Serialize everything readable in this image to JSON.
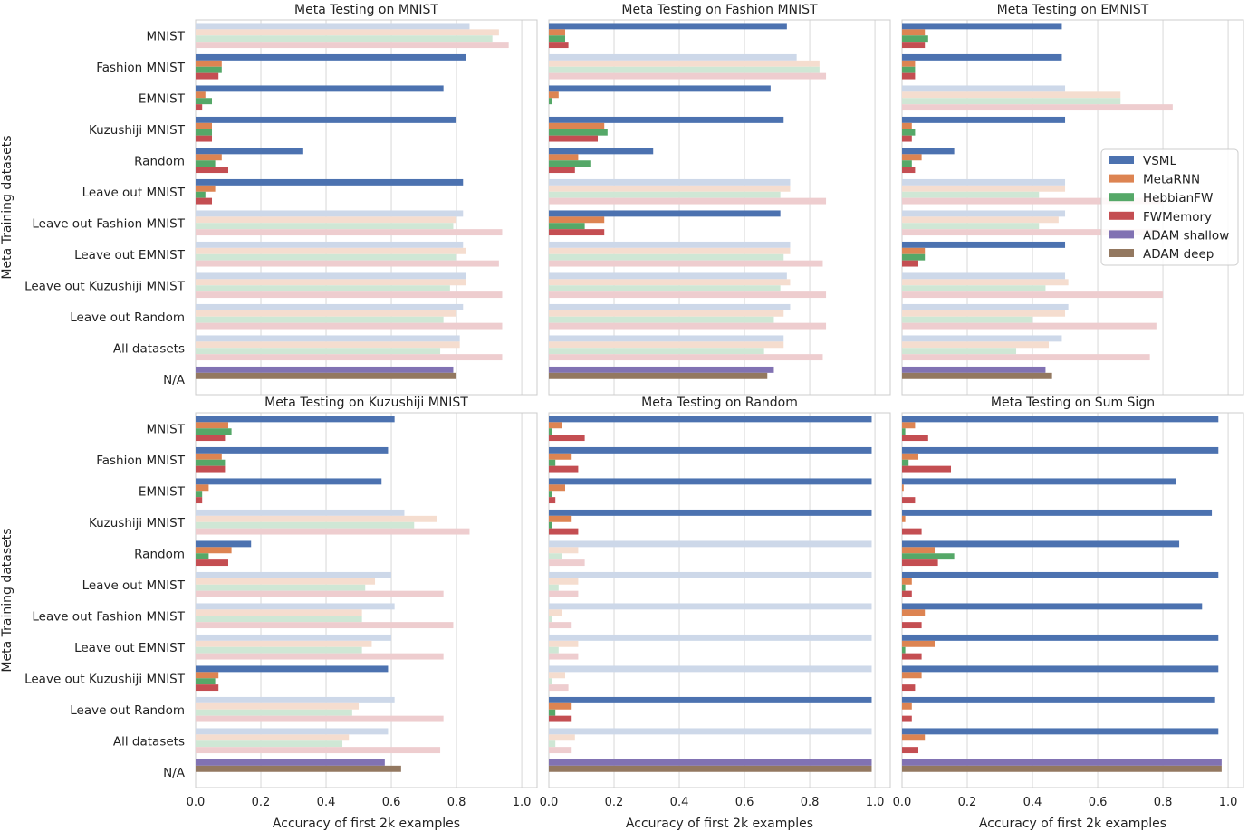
{
  "chart_data": [
    {
      "type": "bar",
      "title": "Meta Testing on MNIST",
      "xlabel": "Accuracy of first 2k examples",
      "ylabel": "Meta Training datasets",
      "xlim": [
        0,
        1.047
      ],
      "faded_rows": [
        "MNIST",
        "Leave out Fashion MNIST",
        "Leave out EMNIST",
        "Leave out Kuzushiji MNIST",
        "Leave out Random",
        "All datasets"
      ],
      "series": [
        {
          "name": "VSML",
          "values": [
            0.84,
            0.83,
            0.76,
            0.8,
            0.33,
            0.82,
            0.82,
            0.82,
            0.83,
            0.82,
            0.81,
            null
          ]
        },
        {
          "name": "MetaRNN",
          "values": [
            0.93,
            0.08,
            0.03,
            0.05,
            0.08,
            0.06,
            0.8,
            0.83,
            0.83,
            0.8,
            0.81,
            null
          ]
        },
        {
          "name": "HebbianFW",
          "values": [
            0.91,
            0.08,
            0.05,
            0.05,
            0.06,
            0.03,
            0.79,
            0.8,
            0.78,
            0.76,
            0.75,
            null
          ]
        },
        {
          "name": "FWMemory",
          "values": [
            0.96,
            0.07,
            0.02,
            0.05,
            0.1,
            0.05,
            0.94,
            0.93,
            0.94,
            0.94,
            0.94,
            null
          ]
        },
        {
          "name": "ADAM shallow",
          "values": [
            null,
            null,
            null,
            null,
            null,
            null,
            null,
            null,
            null,
            null,
            null,
            0.79
          ]
        },
        {
          "name": "ADAM deep",
          "values": [
            null,
            null,
            null,
            null,
            null,
            null,
            null,
            null,
            null,
            null,
            null,
            0.8
          ]
        }
      ]
    },
    {
      "type": "bar",
      "title": "Meta Testing on Fashion MNIST",
      "xlabel": "Accuracy of first 2k examples",
      "ylabel": "",
      "xlim": [
        0,
        1.047
      ],
      "faded_rows": [
        "Fashion MNIST",
        "Leave out MNIST",
        "Leave out EMNIST",
        "Leave out Kuzushiji MNIST",
        "Leave out Random",
        "All datasets"
      ],
      "series": [
        {
          "name": "VSML",
          "values": [
            0.73,
            0.76,
            0.68,
            0.72,
            0.32,
            0.74,
            0.71,
            0.74,
            0.73,
            0.74,
            0.72,
            null
          ]
        },
        {
          "name": "MetaRNN",
          "values": [
            0.05,
            0.83,
            0.03,
            0.17,
            0.09,
            0.74,
            0.17,
            0.74,
            0.74,
            0.72,
            0.72,
            null
          ]
        },
        {
          "name": "HebbianFW",
          "values": [
            0.05,
            0.83,
            0.01,
            0.18,
            0.13,
            0.71,
            0.11,
            0.72,
            0.71,
            0.69,
            0.66,
            null
          ]
        },
        {
          "name": "FWMemory",
          "values": [
            0.06,
            0.85,
            0.0,
            0.15,
            0.08,
            0.85,
            0.17,
            0.84,
            0.85,
            0.85,
            0.84,
            null
          ]
        },
        {
          "name": "ADAM shallow",
          "values": [
            null,
            null,
            null,
            null,
            null,
            null,
            null,
            null,
            null,
            null,
            null,
            0.69
          ]
        },
        {
          "name": "ADAM deep",
          "values": [
            null,
            null,
            null,
            null,
            null,
            null,
            null,
            null,
            null,
            null,
            null,
            0.67
          ]
        }
      ]
    },
    {
      "type": "bar",
      "title": "Meta Testing on EMNIST",
      "xlabel": "Accuracy of first 2k examples",
      "ylabel": "",
      "xlim": [
        0,
        1.047
      ],
      "faded_rows": [
        "EMNIST",
        "Leave out MNIST",
        "Leave out Fashion MNIST",
        "Leave out Kuzushiji MNIST",
        "Leave out Random",
        "All datasets"
      ],
      "series": [
        {
          "name": "VSML",
          "values": [
            0.49,
            0.49,
            0.5,
            0.5,
            0.16,
            0.5,
            0.5,
            0.5,
            0.5,
            0.51,
            0.49,
            null
          ]
        },
        {
          "name": "MetaRNN",
          "values": [
            0.07,
            0.04,
            0.67,
            0.03,
            0.06,
            0.5,
            0.48,
            0.07,
            0.51,
            0.5,
            0.45,
            null
          ]
        },
        {
          "name": "HebbianFW",
          "values": [
            0.08,
            0.04,
            0.67,
            0.04,
            0.03,
            0.42,
            0.42,
            0.07,
            0.44,
            0.4,
            0.35,
            null
          ]
        },
        {
          "name": "FWMemory",
          "values": [
            0.07,
            0.04,
            0.83,
            0.03,
            0.04,
            0.8,
            0.79,
            0.05,
            0.8,
            0.78,
            0.76,
            null
          ]
        },
        {
          "name": "ADAM shallow",
          "values": [
            null,
            null,
            null,
            null,
            null,
            null,
            null,
            null,
            null,
            null,
            null,
            0.44
          ]
        },
        {
          "name": "ADAM deep",
          "values": [
            null,
            null,
            null,
            null,
            null,
            null,
            null,
            null,
            null,
            null,
            null,
            0.46
          ]
        }
      ]
    },
    {
      "type": "bar",
      "title": "Meta Testing on Kuzushiji MNIST",
      "xlabel": "Accuracy of first 2k examples",
      "ylabel": "Meta Training datasets",
      "xlim": [
        0,
        1.047
      ],
      "faded_rows": [
        "Kuzushiji MNIST",
        "Leave out MNIST",
        "Leave out Fashion MNIST",
        "Leave out EMNIST",
        "Leave out Random",
        "All datasets"
      ],
      "series": [
        {
          "name": "VSML",
          "values": [
            0.61,
            0.59,
            0.57,
            0.64,
            0.17,
            0.6,
            0.61,
            0.6,
            0.59,
            0.61,
            0.59,
            null
          ]
        },
        {
          "name": "MetaRNN",
          "values": [
            0.1,
            0.08,
            0.04,
            0.74,
            0.11,
            0.55,
            0.51,
            0.54,
            0.07,
            0.5,
            0.47,
            null
          ]
        },
        {
          "name": "HebbianFW",
          "values": [
            0.11,
            0.09,
            0.02,
            0.67,
            0.04,
            0.52,
            0.51,
            0.51,
            0.06,
            0.48,
            0.45,
            null
          ]
        },
        {
          "name": "FWMemory",
          "values": [
            0.09,
            0.09,
            0.02,
            0.84,
            0.1,
            0.76,
            0.79,
            0.76,
            0.07,
            0.76,
            0.75,
            null
          ]
        },
        {
          "name": "ADAM shallow",
          "values": [
            null,
            null,
            null,
            null,
            null,
            null,
            null,
            null,
            null,
            null,
            null,
            0.58
          ]
        },
        {
          "name": "ADAM deep",
          "values": [
            null,
            null,
            null,
            null,
            null,
            null,
            null,
            null,
            null,
            null,
            null,
            0.63
          ]
        }
      ]
    },
    {
      "type": "bar",
      "title": "Meta Testing on Random",
      "xlabel": "Accuracy of first 2k examples",
      "ylabel": "",
      "xlim": [
        0,
        1.047
      ],
      "faded_rows": [
        "Random",
        "Leave out MNIST",
        "Leave out Fashion MNIST",
        "Leave out EMNIST",
        "Leave out Kuzushiji MNIST",
        "All datasets"
      ],
      "series": [
        {
          "name": "VSML",
          "values": [
            0.99,
            0.99,
            0.99,
            0.99,
            0.99,
            0.99,
            0.99,
            0.99,
            0.99,
            0.99,
            0.99,
            null
          ]
        },
        {
          "name": "MetaRNN",
          "values": [
            0.04,
            0.07,
            0.05,
            0.07,
            0.09,
            0.09,
            0.04,
            0.09,
            0.05,
            0.07,
            0.08,
            null
          ]
        },
        {
          "name": "HebbianFW",
          "values": [
            0.01,
            0.02,
            0.01,
            0.01,
            0.04,
            0.03,
            0.01,
            0.03,
            0.01,
            0.02,
            0.02,
            null
          ]
        },
        {
          "name": "FWMemory",
          "values": [
            0.11,
            0.09,
            0.02,
            0.09,
            0.11,
            0.09,
            0.07,
            0.09,
            0.06,
            0.07,
            0.07,
            null
          ]
        },
        {
          "name": "ADAM shallow",
          "values": [
            null,
            null,
            null,
            null,
            null,
            null,
            null,
            null,
            null,
            null,
            null,
            0.99
          ]
        },
        {
          "name": "ADAM deep",
          "values": [
            null,
            null,
            null,
            null,
            null,
            null,
            null,
            null,
            null,
            null,
            null,
            0.99
          ]
        }
      ]
    },
    {
      "type": "bar",
      "title": "Meta Testing on Sum Sign",
      "xlabel": "Accuracy of first 2k examples",
      "ylabel": "",
      "xlim": [
        0,
        1.047
      ],
      "faded_rows": [],
      "series": [
        {
          "name": "VSML",
          "values": [
            0.97,
            0.97,
            0.84,
            0.95,
            0.85,
            0.97,
            0.92,
            0.97,
            0.97,
            0.96,
            0.97,
            null
          ]
        },
        {
          "name": "MetaRNN",
          "values": [
            0.04,
            0.05,
            0.005,
            0.01,
            0.1,
            0.03,
            0.07,
            0.1,
            0.06,
            0.03,
            0.07,
            null
          ]
        },
        {
          "name": "HebbianFW",
          "values": [
            0.01,
            0.02,
            0.0,
            0.0,
            0.16,
            0.01,
            0.0,
            0.01,
            0.0,
            0.0,
            0.0,
            null
          ]
        },
        {
          "name": "FWMemory",
          "values": [
            0.08,
            0.15,
            0.04,
            0.06,
            0.11,
            0.03,
            0.06,
            0.06,
            0.04,
            0.03,
            0.05,
            null
          ]
        },
        {
          "name": "ADAM shallow",
          "values": [
            null,
            null,
            null,
            null,
            null,
            null,
            null,
            null,
            null,
            null,
            null,
            0.98
          ]
        },
        {
          "name": "ADAM deep",
          "values": [
            null,
            null,
            null,
            null,
            null,
            null,
            null,
            null,
            null,
            null,
            null,
            0.98
          ]
        }
      ]
    }
  ],
  "categories": [
    "MNIST",
    "Fashion MNIST",
    "EMNIST",
    "Kuzushiji MNIST",
    "Random",
    "Leave out MNIST",
    "Leave out Fashion MNIST",
    "Leave out EMNIST",
    "Leave out Kuzushiji MNIST",
    "Leave out Random",
    "All datasets",
    "N/A"
  ],
  "xticks": [
    "0.0",
    "0.2",
    "0.4",
    "0.6",
    "0.8",
    "1.0"
  ],
  "legend": {
    "placement": "inside right of EMNIST panel",
    "entries": [
      "VSML",
      "MetaRNN",
      "HebbianFW",
      "FWMemory",
      "ADAM shallow",
      "ADAM deep"
    ]
  },
  "colors": {
    "VSML": "#4c72b0",
    "MetaRNN": "#dd8452",
    "HebbianFW": "#55a868",
    "FWMemory": "#c44e52",
    "ADAM shallow": "#8172b3",
    "ADAM deep": "#937860"
  }
}
